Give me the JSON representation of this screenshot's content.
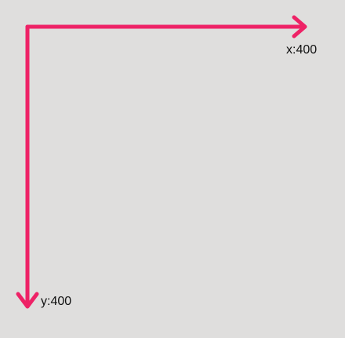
{
  "diagram": {
    "axis_color": "#ee2266",
    "background_color": "#dfdedd",
    "x_axis": {
      "label": "x:400",
      "icon": "arrow-right-icon"
    },
    "y_axis": {
      "label": "y:400",
      "icon": "arrow-down-icon"
    }
  }
}
